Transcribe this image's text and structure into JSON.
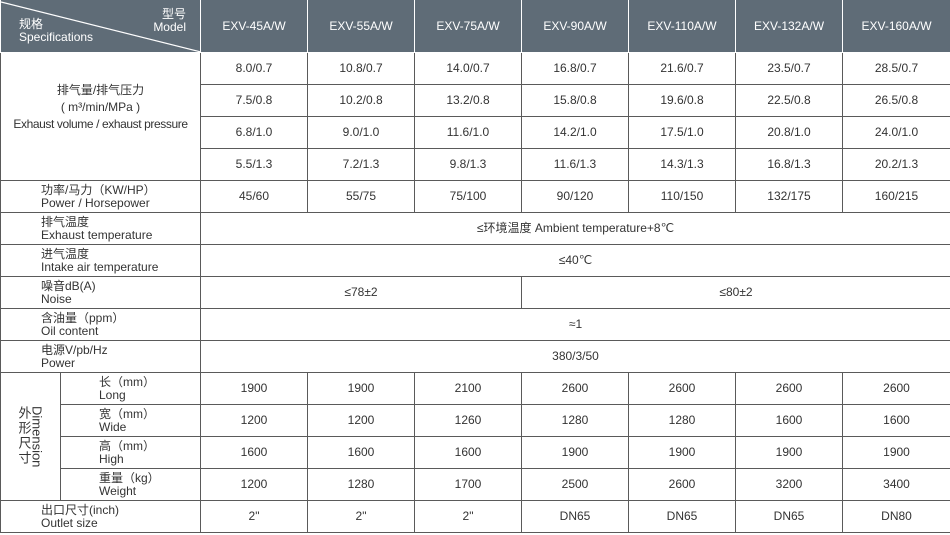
{
  "header": {
    "spec_zh": "规格",
    "spec_en": "Specifications",
    "model_zh": "型号",
    "model_en": "Model",
    "models": [
      "EXV-45A/W",
      "EXV-55A/W",
      "EXV-75A/W",
      "EXV-90A/W",
      "EXV-110A/W",
      "EXV-132A/W",
      "EXV-160A/W"
    ]
  },
  "exhaust": {
    "label_zh": "排气量/排气压力",
    "label_unit": "( m³/min/MPa )",
    "label_en": "Exhaust volume / exhaust pressure",
    "rows": [
      [
        "8.0/0.7",
        "10.8/0.7",
        "14.0/0.7",
        "16.8/0.7",
        "21.6/0.7",
        "23.5/0.7",
        "28.5/0.7"
      ],
      [
        "7.5/0.8",
        "10.2/0.8",
        "13.2/0.8",
        "15.8/0.8",
        "19.6/0.8",
        "22.5/0.8",
        "26.5/0.8"
      ],
      [
        "6.8/1.0",
        "9.0/1.0",
        "11.6/1.0",
        "14.2/1.0",
        "17.5/1.0",
        "20.8/1.0",
        "24.0/1.0"
      ],
      [
        "5.5/1.3",
        "7.2/1.3",
        "9.8/1.3",
        "11.6/1.3",
        "14.3/1.3",
        "16.8/1.3",
        "20.2/1.3"
      ]
    ]
  },
  "power": {
    "label_zh": "功率/马力（KW/HP）",
    "label_en": "Power / Horsepower",
    "values": [
      "45/60",
      "55/75",
      "75/100",
      "90/120",
      "110/150",
      "132/175",
      "160/215"
    ]
  },
  "exhaust_temp": {
    "label_zh": "排气温度",
    "label_en": "Exhaust temperature",
    "value": "≤环境温度 Ambient temperature+8℃"
  },
  "intake_temp": {
    "label_zh": "进气温度",
    "label_en": "Intake air temperature",
    "value": "≤40℃"
  },
  "noise": {
    "label_zh": "噪音dB(A)",
    "label_en": "Noise",
    "value_a": "≤78±2",
    "value_b": "≤80±2"
  },
  "oil": {
    "label_zh": "含油量（ppm）",
    "label_en": "Oil content",
    "value": "≈1"
  },
  "supply": {
    "label_zh": "电源V/pb/Hz",
    "label_en": "Power",
    "value": "380/3/50"
  },
  "dimension": {
    "label_zh": "外形尺寸",
    "label_en": "Dimension",
    "rows": [
      {
        "zh": "长（mm）",
        "en": "Long",
        "values": [
          "1900",
          "1900",
          "2100",
          "2600",
          "2600",
          "2600",
          "2600"
        ]
      },
      {
        "zh": "宽（mm）",
        "en": "Wide",
        "values": [
          "1200",
          "1200",
          "1260",
          "1280",
          "1280",
          "1600",
          "1600"
        ]
      },
      {
        "zh": "高（mm）",
        "en": "High",
        "values": [
          "1600",
          "1600",
          "1600",
          "1900",
          "1900",
          "1900",
          "1900"
        ]
      },
      {
        "zh": "重量（kg）",
        "en": "Weight",
        "values": [
          "1200",
          "1280",
          "1700",
          "2500",
          "2600",
          "3200",
          "3400"
        ]
      }
    ]
  },
  "outlet": {
    "label_zh": "出口尺寸(inch)",
    "label_en": "Outlet size",
    "values": [
      "2\"",
      "2\"",
      "2\"",
      "DN65",
      "DN65",
      "DN65",
      "DN80"
    ]
  }
}
